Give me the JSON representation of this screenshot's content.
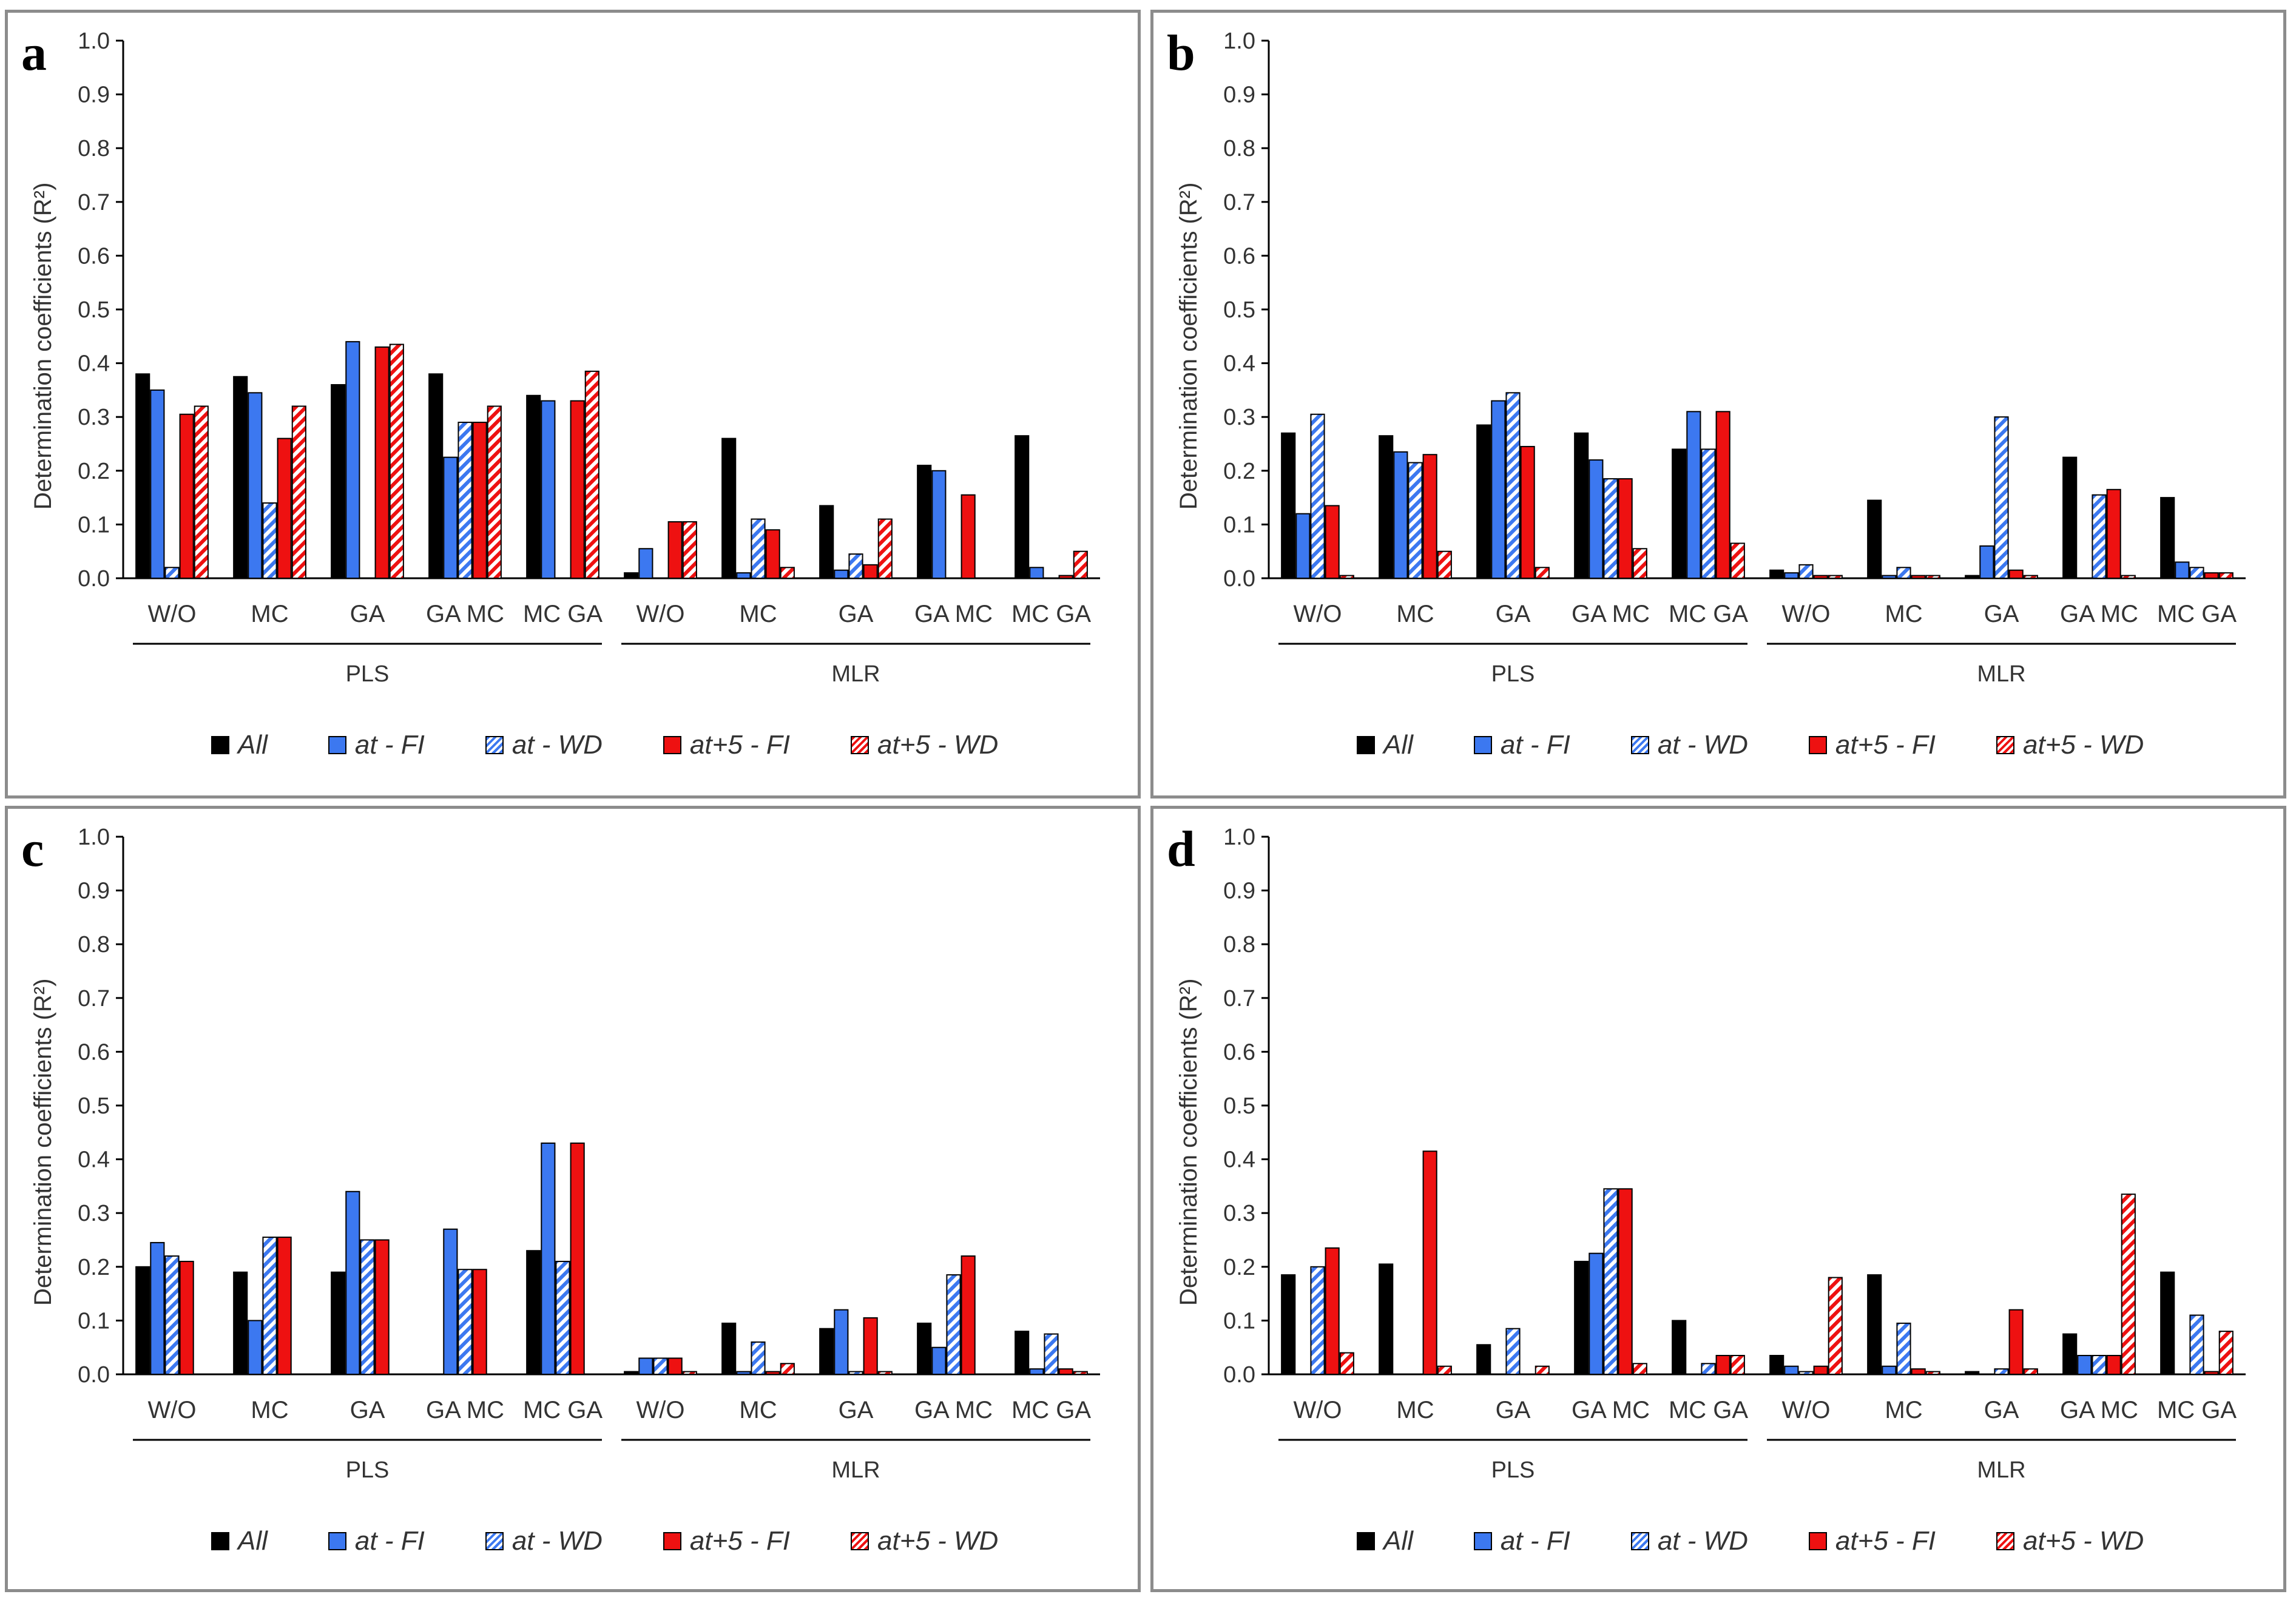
{
  "legend": {
    "items": [
      {
        "key": "all",
        "label": "All"
      },
      {
        "key": "at_fi",
        "label": "at - FI"
      },
      {
        "key": "at_wd",
        "label": "at - WD"
      },
      {
        "key": "at5_fi",
        "label": "at+5 - FI"
      },
      {
        "key": "at5_wd",
        "label": "at+5 - WD"
      }
    ]
  },
  "colors": {
    "black": "#000000",
    "blue": "#3c78f0",
    "red": "#ee1111",
    "axis": "#000000"
  },
  "chart_data": [
    {
      "panel": "a",
      "type": "bar",
      "ylabel": "Determination coefficients (R²)",
      "ylim": [
        0,
        1.0
      ],
      "yticks": [
        "0.0",
        "0.1",
        "0.2",
        "0.3",
        "0.4",
        "0.5",
        "0.6",
        "0.7",
        "0.8",
        "0.9",
        "1.0"
      ],
      "categories": [
        "W/O",
        "MC",
        "GA",
        "GA MC",
        "MC GA",
        "W/O",
        "MC",
        "GA",
        "GA MC",
        "MC GA"
      ],
      "groups": [
        {
          "name": "PLS",
          "categories": 5
        },
        {
          "name": "MLR",
          "categories": 5
        }
      ],
      "series": [
        {
          "name": "All",
          "values": [
            0.38,
            0.375,
            0.36,
            0.38,
            0.34,
            0.01,
            0.26,
            0.135,
            0.21,
            0.265
          ]
        },
        {
          "name": "at - FI",
          "values": [
            0.35,
            0.345,
            0.44,
            0.225,
            0.33,
            0.055,
            0.01,
            0.015,
            0.2,
            0.02
          ]
        },
        {
          "name": "at - WD",
          "values": [
            0.02,
            0.14,
            0.0,
            0.29,
            0.0,
            0.0,
            0.11,
            0.045,
            0.0,
            0.0
          ]
        },
        {
          "name": "at+5 - FI",
          "values": [
            0.305,
            0.26,
            0.43,
            0.29,
            0.33,
            0.105,
            0.09,
            0.025,
            0.155,
            0.005
          ]
        },
        {
          "name": "at+5 - WD",
          "values": [
            0.32,
            0.32,
            0.435,
            0.32,
            0.385,
            0.105,
            0.02,
            0.11,
            0.0,
            0.05
          ]
        }
      ]
    },
    {
      "panel": "b",
      "type": "bar",
      "ylabel": "Determination coefficients (R²)",
      "ylim": [
        0,
        1.0
      ],
      "yticks": [
        "0.0",
        "0.1",
        "0.2",
        "0.3",
        "0.4",
        "0.5",
        "0.6",
        "0.7",
        "0.8",
        "0.9",
        "1.0"
      ],
      "categories": [
        "W/O",
        "MC",
        "GA",
        "GA MC",
        "MC GA",
        "W/O",
        "MC",
        "GA",
        "GA MC",
        "MC GA"
      ],
      "groups": [
        {
          "name": "PLS",
          "categories": 5
        },
        {
          "name": "MLR",
          "categories": 5
        }
      ],
      "series": [
        {
          "name": "All",
          "values": [
            0.27,
            0.265,
            0.285,
            0.27,
            0.24,
            0.015,
            0.145,
            0.005,
            0.225,
            0.15
          ]
        },
        {
          "name": "at - FI",
          "values": [
            0.12,
            0.235,
            0.33,
            0.22,
            0.31,
            0.01,
            0.005,
            0.06,
            0.0,
            0.03
          ]
        },
        {
          "name": "at - WD",
          "values": [
            0.305,
            0.215,
            0.345,
            0.185,
            0.24,
            0.025,
            0.02,
            0.3,
            0.155,
            0.02
          ]
        },
        {
          "name": "at+5 - FI",
          "values": [
            0.135,
            0.23,
            0.245,
            0.185,
            0.31,
            0.005,
            0.005,
            0.015,
            0.165,
            0.01
          ]
        },
        {
          "name": "at+5 - WD",
          "values": [
            0.005,
            0.05,
            0.02,
            0.055,
            0.065,
            0.005,
            0.005,
            0.005,
            0.005,
            0.01
          ]
        }
      ]
    },
    {
      "panel": "c",
      "type": "bar",
      "ylabel": "Determination coefficients (R²)",
      "ylim": [
        0,
        1.0
      ],
      "yticks": [
        "0.0",
        "0.1",
        "0.2",
        "0.3",
        "0.4",
        "0.5",
        "0.6",
        "0.7",
        "0.8",
        "0.9",
        "1.0"
      ],
      "categories": [
        "W/O",
        "MC",
        "GA",
        "GA MC",
        "MC GA",
        "W/O",
        "MC",
        "GA",
        "GA MC",
        "MC GA"
      ],
      "groups": [
        {
          "name": "PLS",
          "categories": 5
        },
        {
          "name": "MLR",
          "categories": 5
        }
      ],
      "series": [
        {
          "name": "All",
          "values": [
            0.2,
            0.19,
            0.19,
            0.0,
            0.23,
            0.005,
            0.095,
            0.085,
            0.095,
            0.08
          ]
        },
        {
          "name": "at - FI",
          "values": [
            0.245,
            0.1,
            0.34,
            0.27,
            0.43,
            0.03,
            0.005,
            0.12,
            0.05,
            0.01
          ]
        },
        {
          "name": "at - WD",
          "values": [
            0.22,
            0.255,
            0.25,
            0.195,
            0.21,
            0.03,
            0.06,
            0.005,
            0.185,
            0.075
          ]
        },
        {
          "name": "at+5 - FI",
          "values": [
            0.21,
            0.255,
            0.25,
            0.195,
            0.43,
            0.03,
            0.005,
            0.105,
            0.22,
            0.01
          ]
        },
        {
          "name": "at+5 - WD",
          "values": [
            0.0,
            0.0,
            0.0,
            0.0,
            0.0,
            0.005,
            0.02,
            0.005,
            0.0,
            0.005
          ]
        }
      ]
    },
    {
      "panel": "d",
      "type": "bar",
      "ylabel": "Determination coefficients (R²)",
      "ylim": [
        0,
        1.0
      ],
      "yticks": [
        "0.0",
        "0.1",
        "0.2",
        "0.3",
        "0.4",
        "0.5",
        "0.6",
        "0.7",
        "0.8",
        "0.9",
        "1.0"
      ],
      "categories": [
        "W/O",
        "MC",
        "GA",
        "GA MC",
        "MC GA",
        "W/O",
        "MC",
        "GA",
        "GA MC",
        "MC GA"
      ],
      "groups": [
        {
          "name": "PLS",
          "categories": 5
        },
        {
          "name": "MLR",
          "categories": 5
        }
      ],
      "series": [
        {
          "name": "All",
          "values": [
            0.185,
            0.205,
            0.055,
            0.21,
            0.1,
            0.035,
            0.185,
            0.005,
            0.075,
            0.19
          ]
        },
        {
          "name": "at - FI",
          "values": [
            0.0,
            0.0,
            0.0,
            0.225,
            0.0,
            0.015,
            0.015,
            0.0,
            0.035,
            0.0
          ]
        },
        {
          "name": "at - WD",
          "values": [
            0.2,
            0.0,
            0.085,
            0.345,
            0.02,
            0.005,
            0.095,
            0.01,
            0.035,
            0.11
          ]
        },
        {
          "name": "at+5 - FI",
          "values": [
            0.235,
            0.415,
            0.0,
            0.345,
            0.035,
            0.015,
            0.01,
            0.12,
            0.035,
            0.005
          ]
        },
        {
          "name": "at+5 - WD",
          "values": [
            0.04,
            0.015,
            0.015,
            0.02,
            0.035,
            0.18,
            0.005,
            0.01,
            0.335,
            0.08
          ]
        }
      ]
    }
  ]
}
